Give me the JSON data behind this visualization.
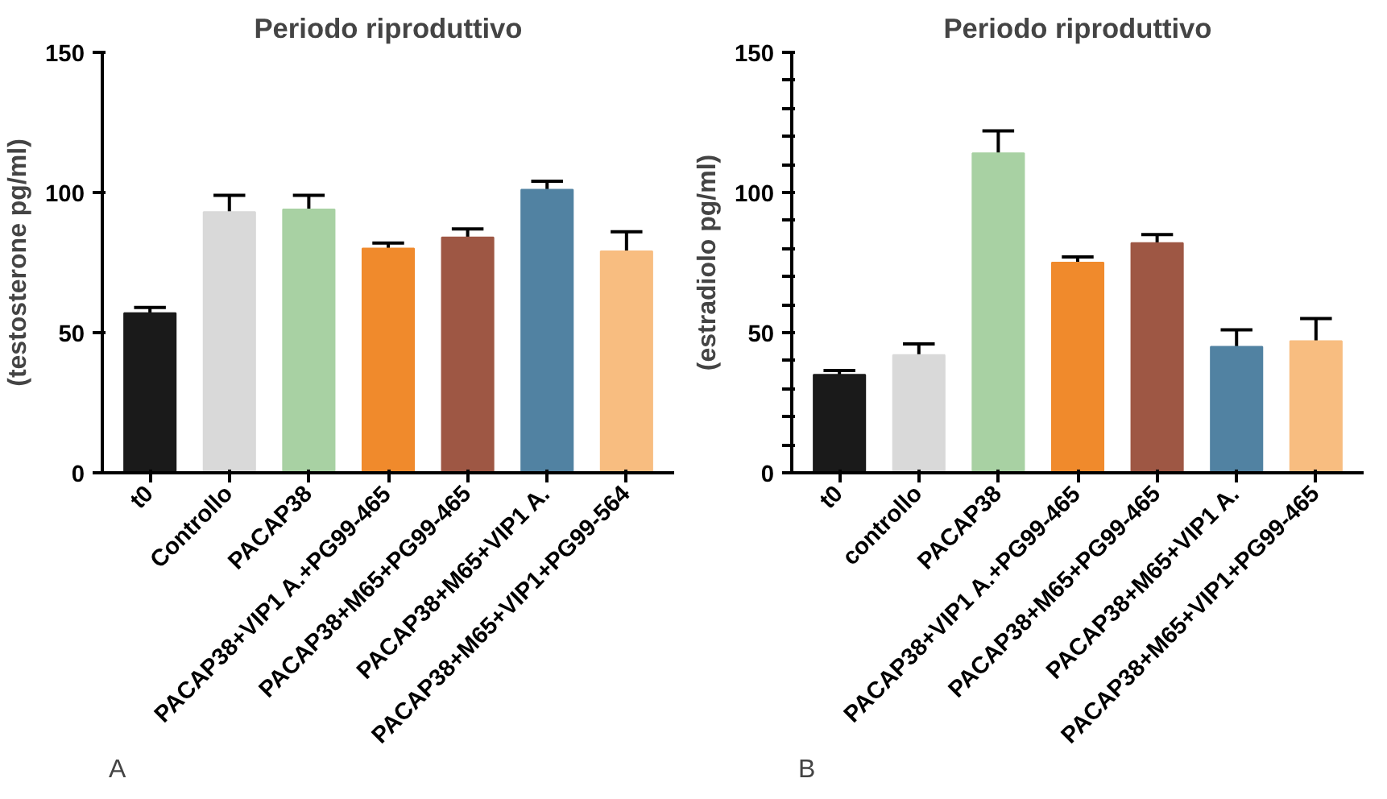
{
  "chart_data": [
    {
      "type": "bar",
      "title": "Periodo riproduttivo",
      "ylabel": "(testosterone pg/ml)",
      "categories": [
        "t0",
        "Controllo",
        "PACAP38",
        "PACAP38+VIP1 A.+PG99-465",
        "PACAP38+M65+PG99-465",
        "PACAP38+M65+VIP1 A.",
        "PACAP38+M65+VIP1+PG99-564"
      ],
      "values": [
        57,
        93,
        94,
        80,
        84,
        101,
        79
      ],
      "errors": [
        2,
        6,
        5,
        2,
        3,
        3,
        7
      ],
      "colors": [
        "#1a1a1a",
        "#d9d9d9",
        "#a8d1a3",
        "#f08a2c",
        "#9e5744",
        "#5182a2",
        "#f8bd80"
      ],
      "ylim": [
        0,
        150
      ],
      "yticks": [
        0,
        50,
        100,
        150
      ],
      "grid": false,
      "annotations": [
        "A"
      ]
    },
    {
      "type": "bar",
      "title": "Periodo riproduttivo",
      "ylabel": "(estradiolo pg/ml)",
      "categories": [
        "t0",
        "controllo",
        "PACAP38",
        "PACAP38+VIP1 A.+PG99-465",
        "PACAP38+M65+PG99-465",
        "PACAP38+M65+VIP1 A.",
        "PACAP38+M65+VIP1+PG99-465"
      ],
      "values": [
        35,
        42,
        114,
        75,
        82,
        45,
        47
      ],
      "errors": [
        1.5,
        4,
        8,
        2,
        3,
        6,
        8
      ],
      "colors": [
        "#1a1a1a",
        "#d9d9d9",
        "#a8d1a3",
        "#f08a2c",
        "#9e5744",
        "#5182a2",
        "#f8bd80"
      ],
      "ylim": [
        0,
        150
      ],
      "yticks": [
        0,
        {
          "value": 10,
          "label": null
        },
        {
          "value": 20,
          "label": null
        },
        {
          "value": 30,
          "label": null
        },
        {
          "value": 40,
          "label": null
        },
        50,
        {
          "value": 60,
          "label": null
        },
        {
          "value": 70,
          "label": null
        },
        {
          "value": 80,
          "label": null
        },
        {
          "value": 90,
          "label": null
        },
        100,
        {
          "value": 110,
          "label": null
        },
        {
          "value": 120,
          "label": null
        },
        {
          "value": 130,
          "label": null
        },
        {
          "value": 140,
          "label": null
        },
        150
      ],
      "grid": false,
      "annotations": [
        "B"
      ]
    }
  ]
}
